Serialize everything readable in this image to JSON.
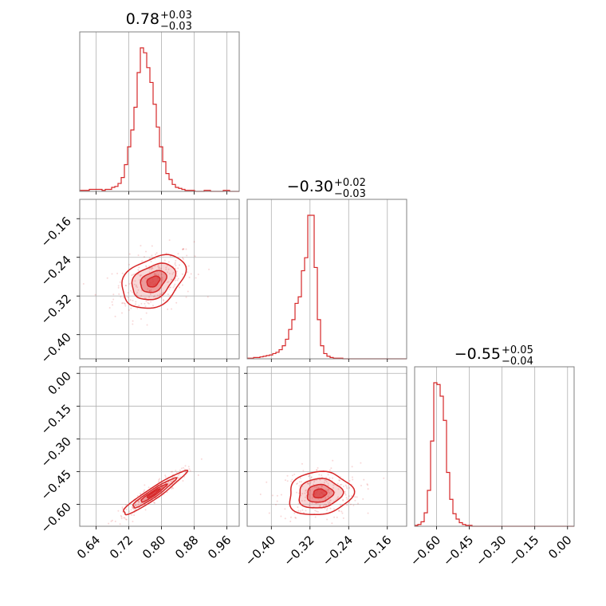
{
  "chart_data": {
    "type": "corner",
    "color": "#d62728",
    "grid": true,
    "parameters": [
      {
        "title": {
          "value": "0.78",
          "plus": "+0.03",
          "minus": "−0.03"
        },
        "range": [
          0.6,
          0.99
        ],
        "ticks": [
          0.64,
          0.72,
          0.8,
          0.88,
          0.96
        ],
        "tick_labels": [
          "0.64",
          "0.72",
          "0.80",
          "0.88",
          "0.96"
        ],
        "hist": {
          "bin_edges_start": 0.6,
          "bin_width": 0.0078,
          "counts": [
            1,
            1,
            1,
            2,
            2,
            2,
            2,
            1,
            2,
            2,
            4,
            5,
            8,
            14,
            27,
            45,
            62,
            85,
            120,
            145,
            140,
            125,
            110,
            88,
            65,
            45,
            30,
            18,
            12,
            7,
            4,
            3,
            2,
            1,
            1,
            1,
            0,
            0,
            0,
            1,
            1,
            0,
            0,
            0,
            0,
            1,
            1,
            0,
            0,
            0
          ]
        }
      },
      {
        "title": {
          "value": "−0.30",
          "plus": "+0.02",
          "minus": "−0.03"
        },
        "range": [
          -0.45,
          -0.12
        ],
        "ticks": [
          -0.4,
          -0.32,
          -0.24,
          -0.16
        ],
        "tick_labels": [
          "−0.40",
          "−0.32",
          "−0.24",
          "−0.16"
        ],
        "hist": {
          "bin_edges_start": -0.45,
          "bin_width": 0.0066,
          "counts": [
            1,
            1,
            2,
            2,
            3,
            4,
            5,
            6,
            8,
            10,
            14,
            20,
            30,
            45,
            60,
            85,
            95,
            135,
            155,
            220,
            220,
            140,
            60,
            20,
            8,
            4,
            2,
            1,
            1,
            1,
            0,
            0,
            0,
            0,
            0,
            0,
            0,
            0,
            0,
            0,
            0,
            0,
            0,
            0,
            0,
            0,
            0,
            0,
            0,
            0
          ]
        }
      },
      {
        "title": {
          "value": "−0.55",
          "plus": "+0.05",
          "minus": "−0.04"
        },
        "range": [
          -0.7,
          0.03
        ],
        "ticks": [
          -0.6,
          -0.45,
          -0.3,
          -0.15,
          0.0
        ],
        "tick_labels": [
          "−0.60",
          "−0.45",
          "−0.30",
          "−0.15",
          "0.00"
        ],
        "hist": {
          "bin_edges_start": -0.7,
          "bin_width": 0.0146,
          "counts": [
            1,
            2,
            5,
            15,
            40,
            95,
            160,
            158,
            145,
            118,
            60,
            30,
            14,
            8,
            4,
            2,
            1,
            1,
            0,
            0,
            0,
            0,
            0,
            0,
            0,
            0,
            0,
            0,
            0,
            0,
            0,
            0,
            0,
            0,
            0,
            0,
            0,
            0,
            0,
            0,
            0,
            0,
            0,
            0,
            0,
            0,
            0,
            0,
            0,
            0
          ]
        }
      }
    ],
    "pairs": [
      {
        "x_param": 0,
        "y_param": 1,
        "center": [
          0.78,
          -0.29
        ],
        "sigma": [
          0.035,
          0.025
        ],
        "rho": 0.35
      },
      {
        "x_param": 0,
        "y_param": 2,
        "center": [
          0.78,
          -0.55
        ],
        "sigma": [
          0.035,
          0.045
        ],
        "rho": 0.95
      },
      {
        "x_param": 1,
        "y_param": 2,
        "center": [
          -0.3,
          -0.55
        ],
        "sigma": [
          0.03,
          0.045
        ],
        "rho": 0.1
      }
    ]
  }
}
